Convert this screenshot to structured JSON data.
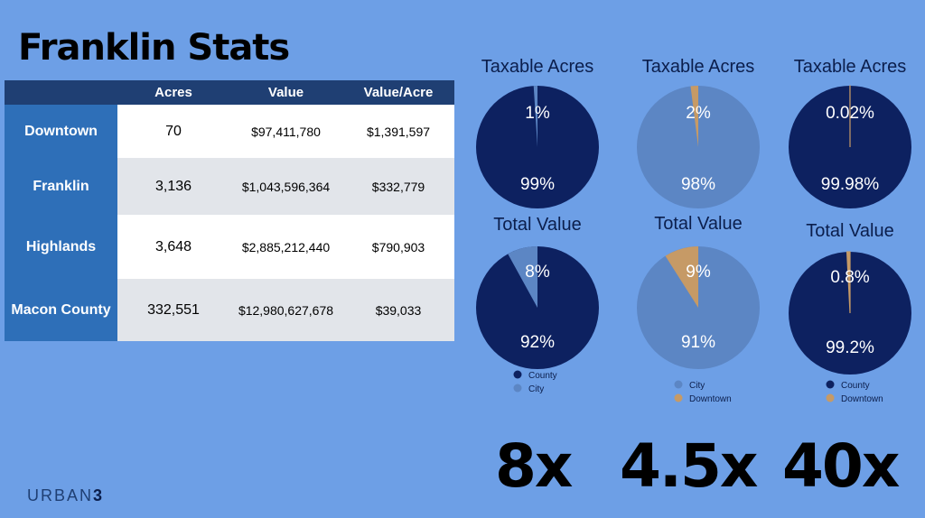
{
  "page": {
    "title": "Franklin Stats",
    "brand_name": "URBAN",
    "brand_number": "3"
  },
  "table": {
    "headers": [
      "",
      "Acres",
      "Value",
      "Value/Acre"
    ],
    "rows": [
      {
        "name": "Downtown",
        "acres": "70",
        "value": "$97,411,780",
        "value_per_acre": "$1,391,597"
      },
      {
        "name": "Franklin",
        "acres": "3,136",
        "value": "$1,043,596,364",
        "value_per_acre": "$332,779"
      },
      {
        "name": "Highlands",
        "acres": "3,648",
        "value": "$2,885,212,440",
        "value_per_acre": "$790,903"
      },
      {
        "name": "Macon County",
        "acres": "332,551",
        "value": "$12,980,627,678",
        "value_per_acre": "$39,033"
      }
    ]
  },
  "ratios": [
    "8x",
    "4.5x",
    "40x"
  ],
  "colors": {
    "county": "#0d2160",
    "city": "#5c86c4",
    "downtown": "#c69a66",
    "background": "#6d9fe6",
    "header": "#1f3f73",
    "rowheader": "#2e6fb8"
  },
  "chart_data": [
    {
      "type": "pie",
      "title": "Taxable Acres",
      "labels": [
        "County",
        "City"
      ],
      "values": [
        99,
        1
      ],
      "value_labels": [
        "99%",
        "1%"
      ]
    },
    {
      "type": "pie",
      "title": "Total Value",
      "labels": [
        "County",
        "City"
      ],
      "values": [
        92,
        8
      ],
      "value_labels": [
        "92%",
        "8%"
      ],
      "legend": [
        "County",
        "City"
      ]
    },
    {
      "type": "pie",
      "title": "Taxable Acres",
      "labels": [
        "City",
        "Downtown"
      ],
      "values": [
        98,
        2
      ],
      "value_labels": [
        "98%",
        "2%"
      ]
    },
    {
      "type": "pie",
      "title": "Total Value",
      "labels": [
        "City",
        "Downtown"
      ],
      "values": [
        91,
        9
      ],
      "value_labels": [
        "91%",
        "9%"
      ],
      "legend": [
        "City",
        "Downtown"
      ]
    },
    {
      "type": "pie",
      "title": "Taxable Acres",
      "labels": [
        "County",
        "Downtown"
      ],
      "values": [
        99.98,
        0.02
      ],
      "value_labels": [
        "99.98%",
        "0.02%"
      ]
    },
    {
      "type": "pie",
      "title": "Total Value",
      "labels": [
        "County",
        "Downtown"
      ],
      "values": [
        99.2,
        0.8
      ],
      "value_labels": [
        "99.2%",
        "0.8%"
      ],
      "legend": [
        "County",
        "Downtown"
      ]
    }
  ]
}
